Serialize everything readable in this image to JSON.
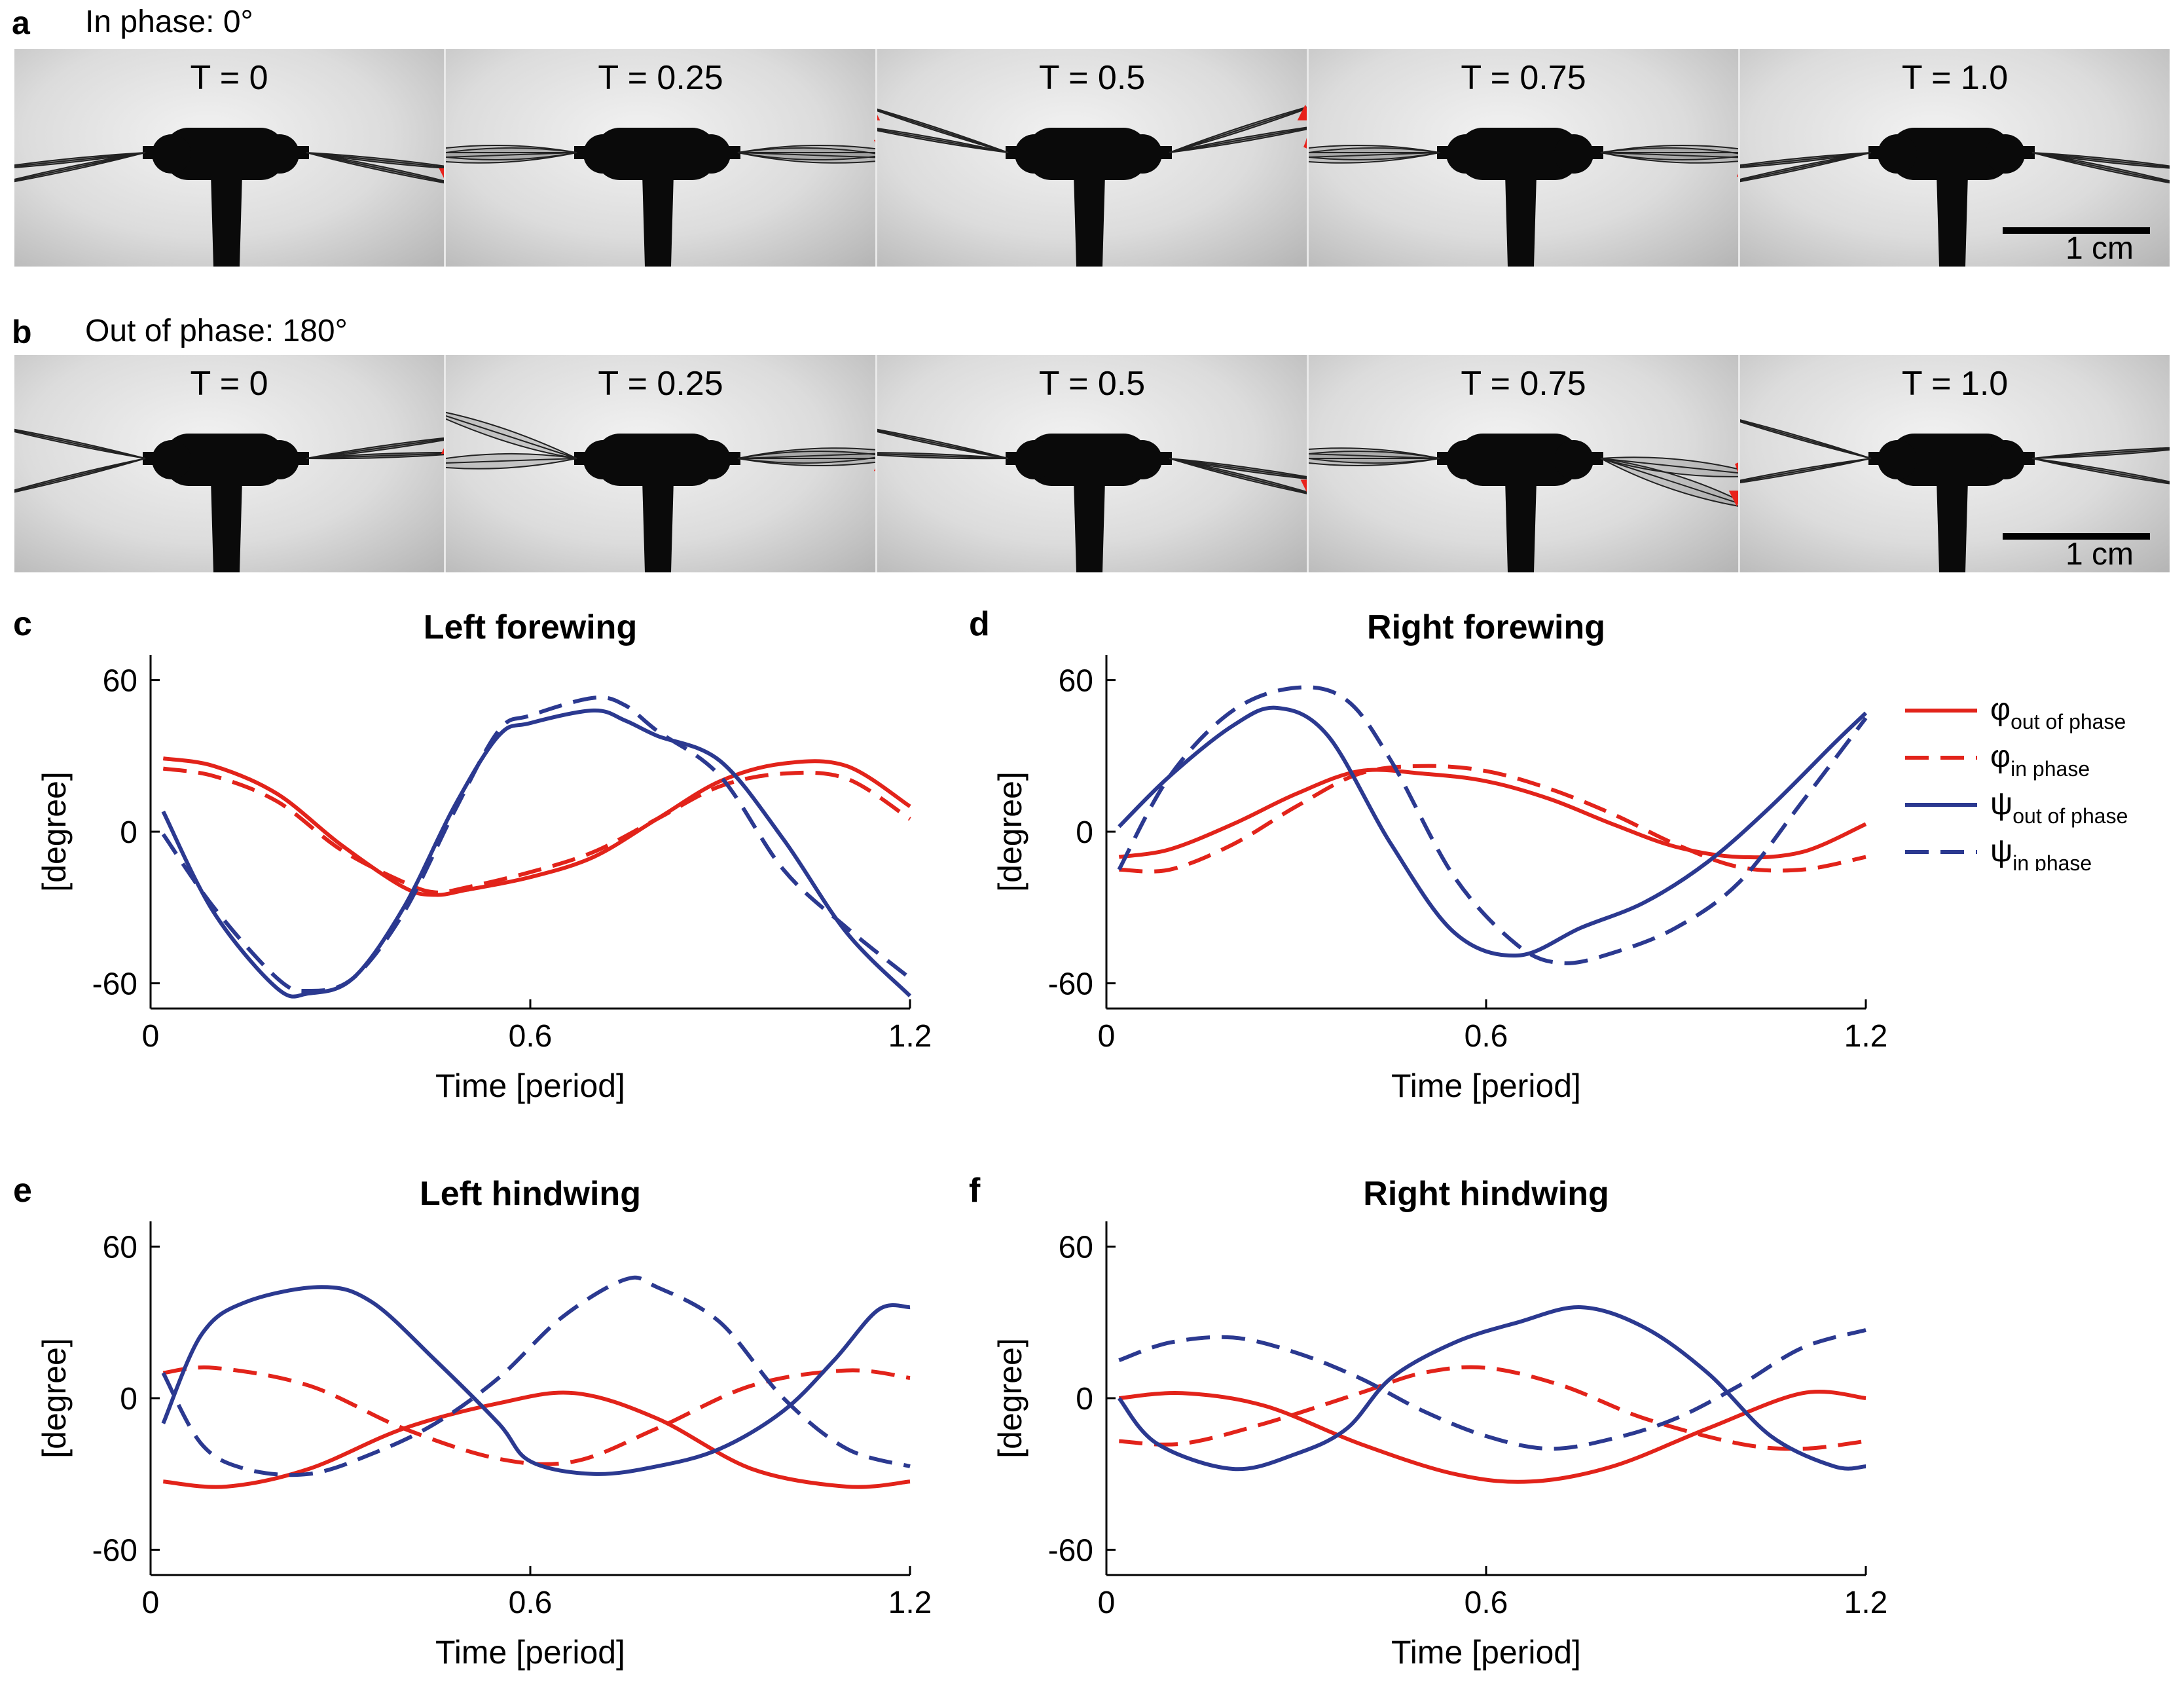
{
  "figure": {
    "panel_a": {
      "letter": "a",
      "title": "In phase:  0°"
    },
    "panel_b": {
      "letter": "b",
      "title": "Out of phase:  180°"
    },
    "frame_labels": [
      "T = 0",
      "T = 0.25",
      "T = 0.5",
      "T = 0.75",
      "T = 1.0"
    ],
    "scale_bar_label": "1 cm",
    "colors": {
      "phi": "#e2231a",
      "psi": "#2b3990",
      "arrow": "#e8221b",
      "body": "#0a0a0a"
    }
  },
  "legend": {
    "items": [
      {
        "symbol": "φ",
        "sub": "out of phase",
        "color": "#e2231a",
        "dash": false
      },
      {
        "symbol": "φ",
        "sub": "in phase",
        "color": "#e2231a",
        "dash": true
      },
      {
        "symbol": "ψ",
        "sub": "out of phase",
        "color": "#2b3990",
        "dash": false
      },
      {
        "symbol": "ψ",
        "sub": "in phase",
        "color": "#2b3990",
        "dash": true
      }
    ]
  },
  "chart_data": [
    {
      "panel": "c",
      "type": "line",
      "title": "Left forewing",
      "xlabel": "Time [period]",
      "ylabel": "[degree]",
      "xlim": [
        0,
        1.2
      ],
      "ylim": [
        -70,
        70
      ],
      "xticks": [
        0,
        0.6,
        1.2
      ],
      "xtick_labels": [
        "0",
        "0.6",
        "1.2"
      ],
      "yticks": [
        60,
        0,
        -60
      ],
      "ytick_labels": [
        "60",
        "0",
        "-60"
      ],
      "series": [
        {
          "name": "φ out of phase",
          "color": "#e2231a",
          "dash": false,
          "x": [
            0.02,
            0.1,
            0.2,
            0.3,
            0.4,
            0.45,
            0.5,
            0.6,
            0.7,
            0.8,
            0.9,
            1.0,
            1.1,
            1.2
          ],
          "y": [
            29,
            26,
            15,
            -5,
            -22,
            -25,
            -23,
            -18,
            -10,
            5,
            20,
            27,
            26,
            10
          ]
        },
        {
          "name": "φ in phase",
          "color": "#e2231a",
          "dash": true,
          "x": [
            0.02,
            0.1,
            0.2,
            0.3,
            0.4,
            0.45,
            0.5,
            0.6,
            0.7,
            0.8,
            0.9,
            1.0,
            1.1,
            1.2
          ],
          "y": [
            25,
            22,
            12,
            -7,
            -20,
            -24,
            -22,
            -16,
            -8,
            5,
            18,
            23,
            21,
            5
          ]
        },
        {
          "name": "ψ out of phase",
          "color": "#2b3990",
          "dash": false,
          "x": [
            0.02,
            0.1,
            0.2,
            0.25,
            0.32,
            0.4,
            0.48,
            0.55,
            0.6,
            0.7,
            0.75,
            0.8,
            0.9,
            1.0,
            1.1,
            1.2
          ],
          "y": [
            8,
            -32,
            -62,
            -64,
            -58,
            -30,
            10,
            38,
            43,
            48,
            44,
            38,
            28,
            -3,
            -40,
            -65
          ]
        },
        {
          "name": "ψ in phase",
          "color": "#2b3990",
          "dash": true,
          "x": [
            0.02,
            0.1,
            0.2,
            0.25,
            0.32,
            0.4,
            0.48,
            0.55,
            0.6,
            0.7,
            0.75,
            0.8,
            0.9,
            1.0,
            1.1,
            1.2
          ],
          "y": [
            -1,
            -30,
            -58,
            -63,
            -58,
            -32,
            8,
            40,
            46,
            53,
            50,
            40,
            22,
            -15,
            -38,
            -58
          ]
        }
      ]
    },
    {
      "panel": "d",
      "type": "line",
      "title": "Right forewing",
      "xlabel": "Time [period]",
      "ylabel": "[degree]",
      "xlim": [
        0,
        1.2
      ],
      "ylim": [
        -70,
        70
      ],
      "xticks": [
        0,
        0.6,
        1.2
      ],
      "xtick_labels": [
        "0",
        "0.6",
        "1.2"
      ],
      "yticks": [
        60,
        0,
        -60
      ],
      "ytick_labels": [
        "60",
        "0",
        "-60"
      ],
      "series": [
        {
          "name": "φ out of phase",
          "color": "#e2231a",
          "dash": false,
          "x": [
            0.02,
            0.1,
            0.2,
            0.3,
            0.4,
            0.5,
            0.6,
            0.7,
            0.8,
            0.9,
            1.0,
            1.1,
            1.2
          ],
          "y": [
            -10,
            -7,
            3,
            15,
            24,
            23,
            20,
            13,
            3,
            -6,
            -10,
            -8,
            3
          ]
        },
        {
          "name": "φ in phase",
          "color": "#e2231a",
          "dash": true,
          "x": [
            0.02,
            0.1,
            0.2,
            0.3,
            0.4,
            0.5,
            0.6,
            0.7,
            0.8,
            0.9,
            1.0,
            1.1,
            1.2
          ],
          "y": [
            -15,
            -15,
            -5,
            10,
            23,
            26,
            24,
            17,
            7,
            -5,
            -14,
            -15,
            -10
          ]
        },
        {
          "name": "ψ out of phase",
          "color": "#2b3990",
          "dash": false,
          "x": [
            0.02,
            0.1,
            0.2,
            0.27,
            0.35,
            0.45,
            0.55,
            0.65,
            0.75,
            0.85,
            0.95,
            1.05,
            1.15,
            1.2
          ],
          "y": [
            2,
            22,
            42,
            49,
            38,
            -5,
            -40,
            -49,
            -38,
            -28,
            -12,
            10,
            35,
            47
          ]
        },
        {
          "name": "ψ in phase",
          "color": "#2b3990",
          "dash": true,
          "x": [
            0.02,
            0.1,
            0.2,
            0.3,
            0.38,
            0.45,
            0.55,
            0.65,
            0.72,
            0.8,
            0.9,
            1.0,
            1.1,
            1.2
          ],
          "y": [
            -15,
            22,
            48,
            57,
            52,
            28,
            -18,
            -45,
            -52,
            -48,
            -38,
            -20,
            12,
            45
          ]
        }
      ]
    },
    {
      "panel": "e",
      "type": "line",
      "title": "Left hindwing",
      "xlabel": "Time [period]",
      "ylabel": "[degree]",
      "xlim": [
        0,
        1.2
      ],
      "ylim": [
        -70,
        70
      ],
      "xticks": [
        0,
        0.6,
        1.2
      ],
      "xtick_labels": [
        "0",
        "0.6",
        "1.2"
      ],
      "yticks": [
        60,
        0,
        -60
      ],
      "ytick_labels": [
        "60",
        "0",
        "-60"
      ],
      "series": [
        {
          "name": "φ out of phase",
          "color": "#e2231a",
          "dash": false,
          "x": [
            0.02,
            0.12,
            0.25,
            0.4,
            0.55,
            0.67,
            0.8,
            0.95,
            1.1,
            1.2
          ],
          "y": [
            -33,
            -35,
            -28,
            -12,
            -2,
            2,
            -8,
            -28,
            -35,
            -33
          ]
        },
        {
          "name": "φ in phase",
          "color": "#e2231a",
          "dash": true,
          "x": [
            0.02,
            0.1,
            0.25,
            0.4,
            0.55,
            0.67,
            0.8,
            0.95,
            1.1,
            1.2
          ],
          "y": [
            10,
            12,
            5,
            -12,
            -24,
            -25,
            -12,
            5,
            11,
            8
          ]
        },
        {
          "name": "ψ out of phase",
          "color": "#2b3990",
          "dash": false,
          "x": [
            0.02,
            0.08,
            0.15,
            0.27,
            0.35,
            0.45,
            0.55,
            0.6,
            0.7,
            0.8,
            0.9,
            1.0,
            1.08,
            1.15,
            1.2
          ],
          "y": [
            -10,
            25,
            38,
            44,
            38,
            15,
            -10,
            -25,
            -30,
            -27,
            -20,
            -5,
            15,
            35,
            36
          ]
        },
        {
          "name": "ψ in phase",
          "color": "#2b3990",
          "dash": true,
          "x": [
            0.02,
            0.08,
            0.15,
            0.25,
            0.35,
            0.45,
            0.55,
            0.65,
            0.75,
            0.8,
            0.9,
            1.0,
            1.1,
            1.2
          ],
          "y": [
            10,
            -18,
            -28,
            -30,
            -22,
            -10,
            8,
            32,
            47,
            44,
            30,
            0,
            -20,
            -27
          ]
        }
      ]
    },
    {
      "panel": "f",
      "type": "line",
      "title": "Right hindwing",
      "xlabel": "Time [period]",
      "ylabel": "[degree]",
      "xlim": [
        0,
        1.2
      ],
      "ylim": [
        -70,
        70
      ],
      "xticks": [
        0,
        0.6,
        1.2
      ],
      "xtick_labels": [
        "0",
        "0.6",
        "1.2"
      ],
      "yticks": [
        60,
        0,
        -60
      ],
      "ytick_labels": [
        "60",
        "0",
        "-60"
      ],
      "series": [
        {
          "name": "φ out of phase",
          "color": "#e2231a",
          "dash": false,
          "x": [
            0.02,
            0.12,
            0.25,
            0.4,
            0.55,
            0.67,
            0.8,
            0.95,
            1.1,
            1.2
          ],
          "y": [
            0,
            2,
            -3,
            -18,
            -30,
            -33,
            -27,
            -12,
            2,
            0
          ]
        },
        {
          "name": "φ in phase",
          "color": "#e2231a",
          "dash": true,
          "x": [
            0.02,
            0.12,
            0.25,
            0.4,
            0.5,
            0.6,
            0.72,
            0.85,
            1.0,
            1.1,
            1.2
          ],
          "y": [
            -17,
            -18,
            -10,
            2,
            10,
            12,
            5,
            -8,
            -18,
            -20,
            -17
          ]
        },
        {
          "name": "ψ out of phase",
          "color": "#2b3990",
          "dash": false,
          "x": [
            0.02,
            0.08,
            0.2,
            0.3,
            0.38,
            0.45,
            0.55,
            0.65,
            0.75,
            0.85,
            0.95,
            1.05,
            1.15,
            1.2
          ],
          "y": [
            0,
            -18,
            -28,
            -22,
            -12,
            8,
            22,
            30,
            36,
            28,
            10,
            -15,
            -27,
            -27
          ]
        },
        {
          "name": "ψ in phase",
          "color": "#2b3990",
          "dash": true,
          "x": [
            0.02,
            0.1,
            0.2,
            0.3,
            0.4,
            0.5,
            0.6,
            0.7,
            0.8,
            0.9,
            1.0,
            1.1,
            1.2
          ],
          "y": [
            15,
            22,
            24,
            18,
            8,
            -5,
            -15,
            -20,
            -16,
            -8,
            5,
            20,
            27
          ]
        }
      ]
    }
  ]
}
